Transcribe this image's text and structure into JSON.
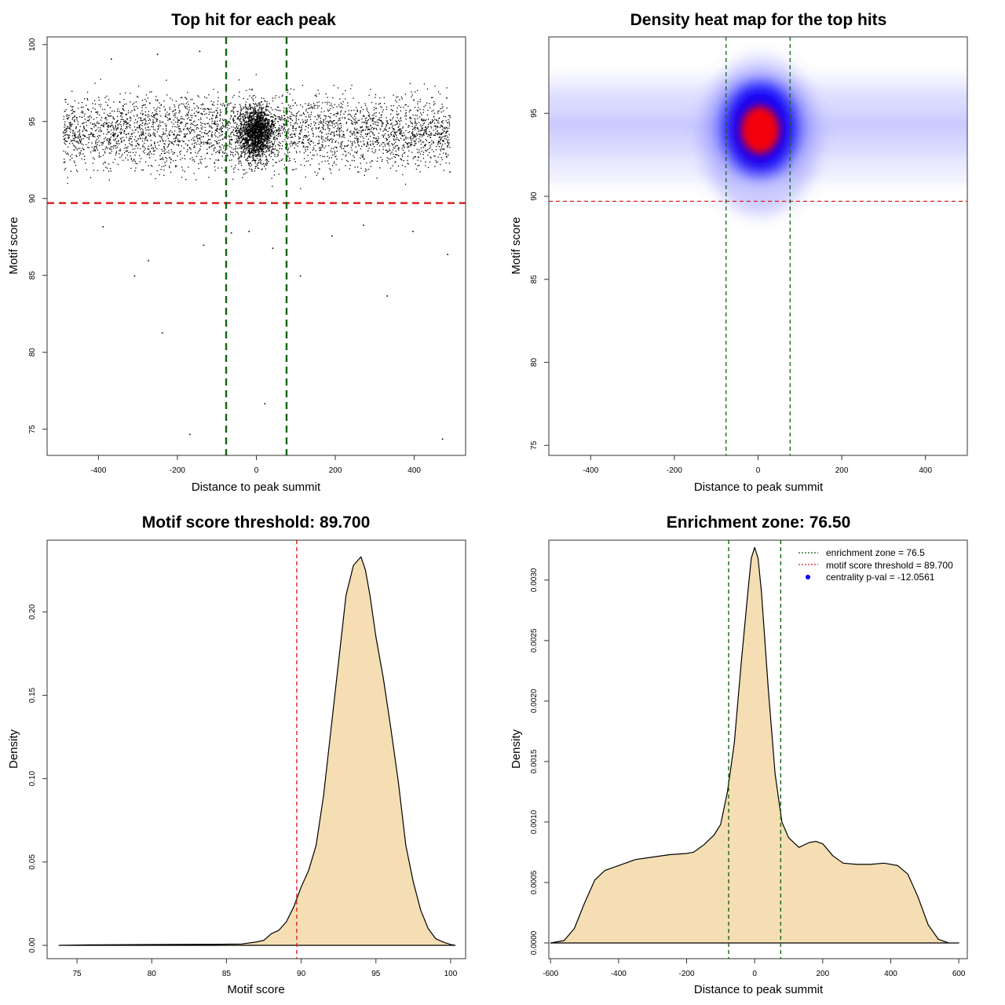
{
  "chart_data": [
    {
      "type": "scatter",
      "title": "Top hit for each peak",
      "xlabel": "Distance to peak summit",
      "ylabel": "Motif score",
      "xlim": [
        -530,
        530
      ],
      "ylim": [
        73.3,
        100.5
      ],
      "xticks": [
        -400,
        -200,
        0,
        200,
        400
      ],
      "yticks": [
        75,
        80,
        85,
        90,
        95,
        100
      ],
      "hlines": [
        {
          "y": 89.7,
          "color": "#dd2222",
          "style": "dashed"
        }
      ],
      "vlines": [
        {
          "x": -76.5,
          "color": "#116611",
          "style": "dashed"
        },
        {
          "x": 76.5,
          "color": "#116611",
          "style": "dashed"
        }
      ],
      "series": [
        {
          "points_summary": "about 6000 points; dense band at scores 91-97 across x -490 to 490, strongest cluster near x 0, scores 93-96",
          "outliers": [
            [
              -369,
              99.1
            ],
            [
              -252,
              99.4
            ],
            [
              -145,
              99.6
            ],
            [
              -390,
              88.2
            ],
            [
              -310,
              85.0
            ],
            [
              -275,
              86.0
            ],
            [
              -240,
              81.3
            ],
            [
              -170,
              74.7
            ],
            [
              -135,
              87.0
            ],
            [
              -65,
              87.8
            ],
            [
              -20,
              87.9
            ],
            [
              20,
              76.7
            ],
            [
              40,
              86.8
            ],
            [
              110,
              85.0
            ],
            [
              190,
              87.6
            ],
            [
              270,
              88.3
            ],
            [
              330,
              83.7
            ],
            [
              395,
              87.9
            ],
            [
              470,
              74.4
            ],
            [
              483,
              86.4
            ]
          ],
          "color": "#000000"
        }
      ]
    },
    {
      "type": "heatmap",
      "title": "Density heat map for the top hits",
      "xlabel": "Distance to peak summit",
      "ylabel": "Motif score",
      "xlim": [
        -500,
        500
      ],
      "ylim": [
        74.4,
        99.6
      ],
      "xticks": [
        -400,
        -200,
        0,
        200,
        400
      ],
      "yticks": [
        75,
        80,
        85,
        90,
        95
      ],
      "density_peak": {
        "x": 5,
        "y": 94.0
      },
      "colors": [
        "#ffffff",
        "#0000ff",
        "#ff0000"
      ],
      "hlines": [
        {
          "y": 89.7,
          "color": "#dd2222",
          "style": "dashed"
        }
      ],
      "vlines": [
        {
          "x": -76.5,
          "color": "#116611",
          "style": "dashed"
        },
        {
          "x": 76.5,
          "color": "#116611",
          "style": "dashed"
        }
      ]
    },
    {
      "type": "area",
      "title": "Motif score threshold: 89.700",
      "xlabel": "Motif score",
      "ylabel": "Density",
      "xlim": [
        73,
        101
      ],
      "ylim": [
        -0.008,
        0.243
      ],
      "xticks": [
        75,
        80,
        85,
        90,
        95,
        100
      ],
      "yticks": [
        0.0,
        0.05,
        0.1,
        0.15,
        0.2
      ],
      "ytick_labels": [
        "0.00",
        "0.05",
        "0.10",
        "0.15",
        "0.20"
      ],
      "fill_color": "#f5deb3",
      "x": [
        73.8,
        76,
        80,
        84,
        86,
        87,
        87.5,
        88,
        88.5,
        89,
        89.5,
        90,
        90.5,
        91,
        91.5,
        92,
        92.5,
        93,
        93.5,
        94,
        94.3,
        94.6,
        95,
        95.5,
        96,
        96.5,
        97,
        97.5,
        98,
        98.5,
        99,
        99.5,
        100,
        100.3
      ],
      "y": [
        0.0,
        0.0003,
        0.0005,
        0.0006,
        0.0008,
        0.002,
        0.003,
        0.007,
        0.009,
        0.014,
        0.023,
        0.035,
        0.045,
        0.06,
        0.09,
        0.13,
        0.17,
        0.21,
        0.228,
        0.233,
        0.225,
        0.21,
        0.185,
        0.16,
        0.13,
        0.098,
        0.06,
        0.038,
        0.021,
        0.01,
        0.004,
        0.002,
        0.0005,
        0.0
      ],
      "vlines": [
        {
          "x": 89.7,
          "color": "#dd2222",
          "style": "dashed"
        }
      ]
    },
    {
      "type": "area",
      "title": "Enrichment zone: 76.50",
      "xlabel": "Distance to peak summit",
      "ylabel": "Density",
      "xlim": [
        -605,
        625
      ],
      "ylim": [
        -0.00013,
        0.00333
      ],
      "xticks": [
        -600,
        -400,
        -200,
        0,
        200,
        400,
        600
      ],
      "yticks": [
        0.0,
        0.0005,
        0.001,
        0.0015,
        0.002,
        0.0025,
        0.003
      ],
      "ytick_labels": [
        "0.0000",
        "0.0005",
        "0.0010",
        "0.0015",
        "0.0020",
        "0.0025",
        "0.0030"
      ],
      "fill_color": "#f5deb3",
      "x": [
        -600,
        -560,
        -530,
        -500,
        -470,
        -440,
        -400,
        -350,
        -300,
        -250,
        -200,
        -180,
        -150,
        -120,
        -100,
        -80,
        -60,
        -40,
        -20,
        -10,
        0,
        10,
        20,
        40,
        60,
        80,
        100,
        130,
        160,
        180,
        200,
        230,
        260,
        300,
        340,
        380,
        420,
        450,
        480,
        510,
        540,
        570,
        600
      ],
      "y": [
        0.0,
        2e-05,
        0.00012,
        0.00033,
        0.00052,
        0.0006,
        0.00064,
        0.00069,
        0.00071,
        0.00073,
        0.00074,
        0.00075,
        0.00081,
        0.00089,
        0.00098,
        0.00125,
        0.00165,
        0.0023,
        0.0029,
        0.00318,
        0.00327,
        0.00318,
        0.0029,
        0.0021,
        0.0014,
        0.001,
        0.00087,
        0.00079,
        0.00083,
        0.00084,
        0.00082,
        0.00072,
        0.00066,
        0.00065,
        0.00065,
        0.00066,
        0.00064,
        0.00057,
        0.00038,
        0.00015,
        3e-05,
        0.0,
        0.0
      ],
      "vlines": [
        {
          "x": -76.5,
          "color": "#116611",
          "style": "dashed"
        },
        {
          "x": 76.5,
          "color": "#116611",
          "style": "dashed"
        }
      ],
      "legend": {
        "position": "top-right",
        "entries": [
          {
            "label": "enrichment zone = 76.5",
            "color": "#116611",
            "style": "dotted"
          },
          {
            "label": "motif score threshold = 89.700",
            "color": "#dd2222",
            "style": "dotted"
          },
          {
            "label": "centrality p-val = -12.0561",
            "color": "#0000ff",
            "style": "point"
          }
        ]
      }
    }
  ]
}
